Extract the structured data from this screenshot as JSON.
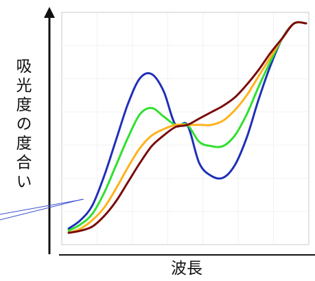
{
  "chart_data": {
    "type": "line",
    "title": "",
    "xlabel": "波長",
    "ylabel": "吸光度の度合い",
    "grid": true,
    "ticks_shown": false,
    "x": [
      0,
      0.05,
      0.1,
      0.15,
      0.2,
      0.25,
      0.3,
      0.35,
      0.4,
      0.45,
      0.5,
      0.55,
      0.6,
      0.65,
      0.7,
      0.75,
      0.8,
      0.85,
      0.9,
      0.95,
      1.0
    ],
    "xlim": [
      0,
      1
    ],
    "ylim": [
      0,
      1
    ],
    "series": [
      {
        "color": "#1f2fb8",
        "values": [
          0.03,
          0.07,
          0.14,
          0.28,
          0.45,
          0.62,
          0.74,
          0.76,
          0.68,
          0.52,
          0.52,
          0.34,
          0.28,
          0.27,
          0.33,
          0.46,
          0.64,
          0.8,
          0.93,
          1.0,
          1.0
        ]
      },
      {
        "color": "#2ee02e",
        "values": [
          0.02,
          0.05,
          0.1,
          0.2,
          0.33,
          0.46,
          0.57,
          0.6,
          0.56,
          0.52,
          0.52,
          0.44,
          0.42,
          0.42,
          0.47,
          0.57,
          0.7,
          0.82,
          0.93,
          1.0,
          1.0
        ]
      },
      {
        "color": "#ffb21a",
        "values": [
          0.01,
          0.03,
          0.07,
          0.13,
          0.22,
          0.32,
          0.41,
          0.47,
          0.5,
          0.52,
          0.52,
          0.52,
          0.52,
          0.54,
          0.59,
          0.66,
          0.75,
          0.84,
          0.93,
          1.0,
          1.0
        ]
      },
      {
        "color": "#7a0a0a",
        "values": [
          0.01,
          0.02,
          0.04,
          0.09,
          0.16,
          0.25,
          0.34,
          0.42,
          0.47,
          0.51,
          0.52,
          0.55,
          0.58,
          0.61,
          0.65,
          0.71,
          0.78,
          0.86,
          0.93,
          1.0,
          1.0
        ]
      }
    ],
    "legend": "none",
    "pointer_line_color": "#3a4fd0"
  }
}
